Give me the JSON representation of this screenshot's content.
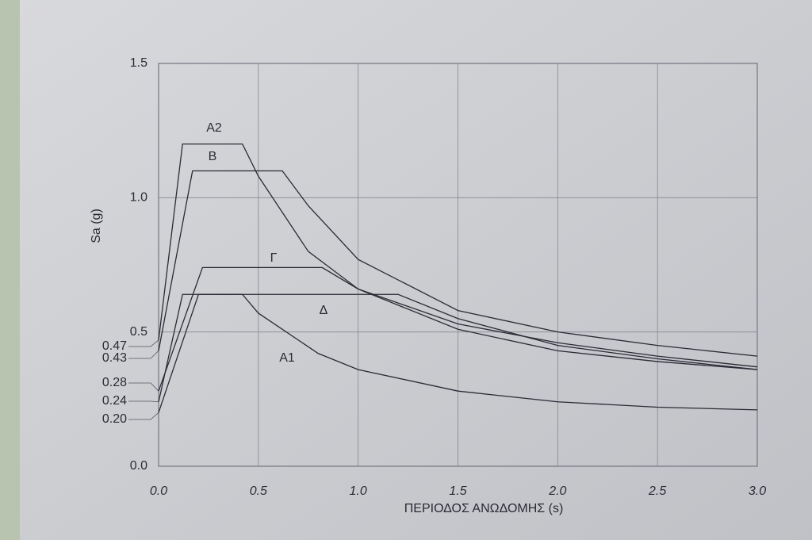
{
  "chart_data": {
    "type": "line",
    "x_label": "ΠΕΡΙΟΔΟΣ ΑΝΩΔΟΜΗΣ (s)",
    "y_label": "Sa (g)",
    "xlim": [
      0,
      3
    ],
    "ylim": [
      0,
      1.5
    ],
    "xticks": [
      {
        "value": 0,
        "label": "0.0"
      },
      0.5,
      {
        "value": 1,
        "label": "1.0"
      },
      1.5,
      {
        "value": 2,
        "label": "2.0"
      },
      2.5,
      {
        "value": 3,
        "label": "3.0"
      }
    ],
    "yticks": [
      {
        "value": 0,
        "label": "0.0"
      },
      0.5,
      {
        "value": 1,
        "label": "1.0"
      },
      1.5
    ],
    "y_markers": [
      0.47,
      0.43,
      0.28,
      0.24,
      {
        "value": 0.2,
        "label": "0.20"
      }
    ],
    "grid": true,
    "series": [
      {
        "name": "A2",
        "color": "#2a2a35",
        "x": [
          0,
          0.12,
          0.42,
          0.5,
          0.75,
          1,
          1.5,
          2,
          2.5,
          3
        ],
        "values": [
          0.47,
          1.2,
          1.2,
          1.08,
          0.8,
          0.66,
          0.53,
          0.46,
          0.41,
          0.37
        ]
      },
      {
        "name": "B",
        "color": "#2a2a35",
        "x": [
          0,
          0.17,
          0.62,
          0.75,
          1,
          1.5,
          2,
          2.5,
          3
        ],
        "values": [
          0.43,
          1.1,
          1.1,
          0.97,
          0.77,
          0.58,
          0.5,
          0.45,
          0.41
        ]
      },
      {
        "name": "Γ",
        "color": "#2a2a35",
        "x": [
          0,
          0.22,
          0.82,
          1,
          1.5,
          2,
          2.5,
          3
        ],
        "values": [
          0.28,
          0.74,
          0.74,
          0.66,
          0.51,
          0.43,
          0.39,
          0.36
        ]
      },
      {
        "name": "Δ",
        "color": "#2a2a35",
        "x": [
          0,
          0.12,
          1.2,
          1.5,
          2,
          2.5,
          3
        ],
        "values": [
          0.24,
          0.64,
          0.64,
          0.55,
          0.45,
          0.4,
          0.36
        ]
      },
      {
        "name": "A1",
        "color": "#2a2a35",
        "x": [
          0,
          0.2,
          0.42,
          0.5,
          0.8,
          1,
          1.5,
          2,
          2.5,
          3
        ],
        "values": [
          0.2,
          0.64,
          0.64,
          0.57,
          0.42,
          0.36,
          0.28,
          0.24,
          0.22,
          0.21
        ]
      }
    ]
  }
}
